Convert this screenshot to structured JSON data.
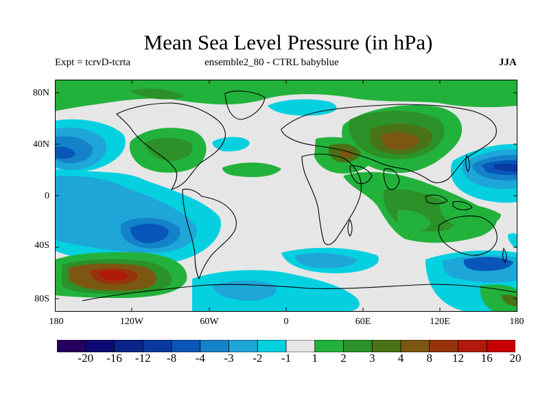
{
  "title": "Mean Sea Level Pressure (in hPa)",
  "subtitle_left": "Expt = tcrvD-tcrta",
  "subtitle_mid": "ensemble2_80 - CTRL babyblue",
  "season": "JJA",
  "lat_labels": [
    "80N",
    "40N",
    "0",
    "40S",
    "80S"
  ],
  "lon_labels": [
    "180",
    "120W",
    "60W",
    "0",
    "60E",
    "120E",
    "180"
  ],
  "colorbar": {
    "labels": [
      "-20",
      "-16",
      "-12",
      "-8",
      "-4",
      "-3",
      "-2",
      "-1",
      "1",
      "2",
      "3",
      "4",
      "8",
      "12",
      "16",
      "20"
    ],
    "colors": [
      "#25005e",
      "#0e0a75",
      "#0a2489",
      "#07399f",
      "#0756b8",
      "#1482c8",
      "#1ea6d8",
      "#04d0e0",
      "#e6e6e6",
      "#22b23c",
      "#2b9128",
      "#4a7317",
      "#7c5712",
      "#98330c",
      "#b01a08",
      "#c70000"
    ]
  }
}
